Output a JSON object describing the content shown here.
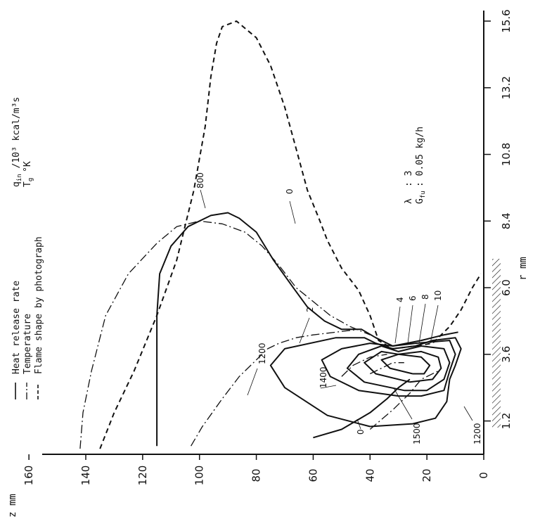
{
  "chart_data": {
    "type": "line",
    "orientation": "rotated 90 degrees counter-clockwise",
    "x_axis": {
      "label": "r   mm",
      "ticks": [
        "1.2",
        "3.6",
        "6.0",
        "8.4",
        "10.8",
        "13.2",
        "15.6"
      ],
      "tick_values": [
        1.2,
        3.6,
        6.0,
        8.4,
        10.8,
        13.2,
        15.6
      ],
      "range": [
        0,
        16
      ]
    },
    "y_axis": {
      "label": "z   mm",
      "ticks": [
        "0",
        "20",
        "40",
        "60",
        "80",
        "100",
        "120",
        "140",
        "160"
      ],
      "tick_values": [
        0,
        20,
        40,
        60,
        80,
        100,
        120,
        140,
        160
      ],
      "range": [
        0,
        160
      ]
    },
    "legend": [
      {
        "key": "solid",
        "label": "Heat release rate",
        "unit": "q",
        "unit_sub": "in",
        "unit_rest": " /10³ kcal/m³s"
      },
      {
        "key": "dashdot",
        "label": "Temperature",
        "unit": "T",
        "unit_sub": "g",
        "unit_rest": " °K"
      },
      {
        "key": "dashed",
        "label": "Flame shape by photograph"
      }
    ],
    "conditions": [
      {
        "symbol": "λ",
        "sub": "",
        "value": ":  3"
      },
      {
        "symbol": "G",
        "sub": "fu",
        "value": ":  0.05   kg/h"
      }
    ],
    "contour_labels": [
      "0",
      "2",
      "4",
      "6",
      "8",
      "10",
      "0",
      "800",
      "1200",
      "1400",
      "1500",
      "1200"
    ],
    "series": [
      {
        "name": "Flame shape by photograph",
        "style": "dashed",
        "points": [
          [
            0.2,
            135
          ],
          [
            1.5,
            130
          ],
          [
            3,
            123
          ],
          [
            5,
            115
          ],
          [
            7,
            108
          ],
          [
            9.5,
            102
          ],
          [
            11.8,
            98
          ],
          [
            13.6,
            96
          ],
          [
            14.8,
            94
          ],
          [
            15.4,
            92
          ],
          [
            15.6,
            87
          ],
          [
            15.0,
            80
          ],
          [
            14.0,
            75
          ],
          [
            12.5,
            70
          ],
          [
            11.0,
            66
          ],
          [
            9.5,
            62
          ],
          [
            8.5,
            58
          ],
          [
            7.7,
            55
          ],
          [
            6.7,
            50
          ],
          [
            5.9,
            44
          ],
          [
            5.0,
            40
          ],
          [
            4.1,
            37
          ],
          [
            3.8,
            32
          ],
          [
            3.9,
            24
          ],
          [
            4.0,
            18
          ],
          [
            4.6,
            12
          ],
          [
            5.2,
            8
          ],
          [
            6.0,
            4
          ],
          [
            6.5,
            1
          ]
        ]
      },
      {
        "name": "q = 0 (outer)",
        "style": "solid",
        "points": [
          [
            0.3,
            115
          ],
          [
            1.5,
            115
          ],
          [
            3,
            115
          ],
          [
            5,
            115
          ],
          [
            6.5,
            114
          ],
          [
            7.5,
            110
          ],
          [
            8.2,
            104
          ],
          [
            8.6,
            96
          ],
          [
            8.7,
            90
          ],
          [
            8.5,
            86
          ],
          [
            8.0,
            80
          ],
          [
            7.0,
            74
          ],
          [
            6.0,
            67
          ],
          [
            5.3,
            62
          ],
          [
            4.8,
            56
          ],
          [
            4.5,
            50
          ],
          [
            4.5,
            43
          ],
          [
            4.2,
            38
          ],
          [
            3.9,
            32
          ],
          [
            4.1,
            22
          ],
          [
            4.3,
            14
          ],
          [
            4.4,
            9
          ]
        ]
      },
      {
        "name": "q = 2",
        "style": "solid",
        "points": [
          [
            1.0,
            40
          ],
          [
            1.4,
            55
          ],
          [
            2.4,
            70
          ],
          [
            3.2,
            75
          ],
          [
            3.8,
            70
          ],
          [
            4.2,
            52
          ],
          [
            4.2,
            42
          ],
          [
            4.0,
            38
          ],
          [
            3.8,
            32
          ],
          [
            3.9,
            24
          ],
          [
            4.1,
            18
          ],
          [
            4.2,
            10
          ],
          [
            3.8,
            8
          ],
          [
            3.2,
            10
          ],
          [
            2.7,
            12
          ],
          [
            1.9,
            13
          ],
          [
            1.3,
            17
          ],
          [
            1.1,
            25
          ],
          [
            1.0,
            40
          ]
        ]
      },
      {
        "name": "q = 4",
        "style": "solid",
        "points": [
          [
            2.1,
            30
          ],
          [
            2.3,
            44
          ],
          [
            2.8,
            54
          ],
          [
            3.4,
            57
          ],
          [
            3.8,
            50
          ],
          [
            4.0,
            40
          ],
          [
            3.9,
            32
          ],
          [
            4.0,
            24
          ],
          [
            4.1,
            12
          ],
          [
            3.6,
            10
          ],
          [
            3.0,
            12
          ],
          [
            2.3,
            14
          ],
          [
            2.1,
            22
          ],
          [
            2.1,
            30
          ]
        ]
      },
      {
        "name": "q = 6",
        "style": "solid",
        "points": [
          [
            2.3,
            28
          ],
          [
            2.6,
            42
          ],
          [
            3.1,
            48
          ],
          [
            3.6,
            44
          ],
          [
            3.9,
            36
          ],
          [
            3.7,
            30
          ],
          [
            3.9,
            22
          ],
          [
            3.8,
            14
          ],
          [
            3.3,
            12
          ],
          [
            2.7,
            14
          ],
          [
            2.3,
            20
          ],
          [
            2.3,
            28
          ]
        ]
      },
      {
        "name": "q = 8",
        "style": "solid",
        "points": [
          [
            2.6,
            26
          ],
          [
            2.9,
            38
          ],
          [
            3.3,
            42
          ],
          [
            3.7,
            36
          ],
          [
            3.6,
            30
          ],
          [
            3.7,
            22
          ],
          [
            3.5,
            16
          ],
          [
            3.1,
            15
          ],
          [
            2.7,
            18
          ],
          [
            2.6,
            26
          ]
        ]
      },
      {
        "name": "q = 10",
        "style": "solid",
        "points": [
          [
            2.9,
            25
          ],
          [
            3.1,
            33
          ],
          [
            3.4,
            36
          ],
          [
            3.6,
            30
          ],
          [
            3.5,
            22
          ],
          [
            3.2,
            19
          ],
          [
            2.9,
            21
          ],
          [
            2.9,
            25
          ]
        ]
      },
      {
        "name": "q = 0 (inner)",
        "style": "solid",
        "points": [
          [
            0.6,
            60
          ],
          [
            0.9,
            50
          ],
          [
            1.5,
            40
          ],
          [
            2.0,
            34
          ],
          [
            2.4,
            30
          ],
          [
            2.7,
            26
          ]
        ]
      },
      {
        "name": "T = 800",
        "style": "dashdot",
        "points": [
          [
            0.2,
            142
          ],
          [
            1.5,
            141
          ],
          [
            3,
            138
          ],
          [
            5,
            133
          ],
          [
            6.5,
            125
          ],
          [
            7.6,
            115
          ],
          [
            8.2,
            108
          ],
          [
            8.4,
            100
          ],
          [
            8.3,
            92
          ],
          [
            8.0,
            84
          ],
          [
            7.5,
            78
          ],
          [
            6.8,
            72
          ],
          [
            6.0,
            66
          ],
          [
            5.5,
            60
          ],
          [
            5.0,
            54
          ],
          [
            4.6,
            47
          ],
          [
            4.3,
            40
          ]
        ]
      },
      {
        "name": "T = 1200",
        "style": "dashdot",
        "points": [
          [
            0.3,
            103
          ],
          [
            1.0,
            99
          ],
          [
            2.0,
            92
          ],
          [
            2.8,
            86
          ],
          [
            3.4,
            80
          ],
          [
            3.8,
            76
          ],
          [
            4.0,
            72
          ],
          [
            4.2,
            66
          ],
          [
            4.3,
            60
          ],
          [
            4.4,
            52
          ],
          [
            4.5,
            44
          ]
        ]
      },
      {
        "name": "T = 1400",
        "style": "dashdot",
        "points": [
          [
            2.8,
            50
          ],
          [
            3.2,
            46
          ],
          [
            3.5,
            40
          ],
          [
            3.6,
            34
          ]
        ]
      },
      {
        "name": "T = 1500",
        "style": "dashdot",
        "points": [
          [
            2.9,
            40
          ],
          [
            3.1,
            36
          ],
          [
            3.3,
            32
          ],
          [
            3.3,
            28
          ]
        ]
      },
      {
        "name": "T = 1200 (inner)",
        "style": "dashdot",
        "points": [
          [
            0.9,
            40
          ],
          [
            1.6,
            32
          ],
          [
            2.2,
            26
          ],
          [
            2.7,
            22
          ],
          [
            3.0,
            16
          ]
        ]
      }
    ]
  }
}
